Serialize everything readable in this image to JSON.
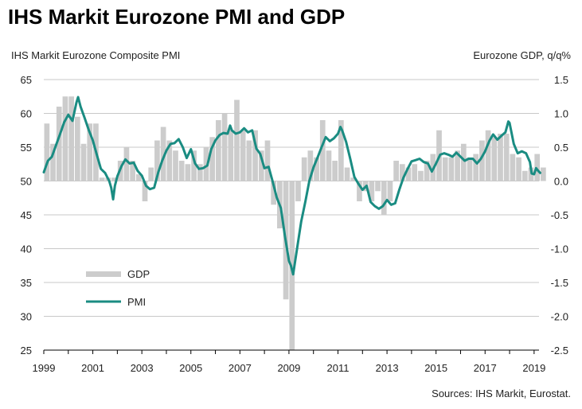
{
  "chart_data": {
    "type": "bar+line",
    "title": "IHS Markit Eurozone PMI and GDP",
    "left_axis_label": "IHS Markit Eurozone Composite PMI",
    "right_axis_label": "Eurozone GDP, q/q%",
    "source": "Sources: IHS Markit, Eurostat.",
    "left_ylim": [
      25,
      65
    ],
    "left_ticks": [
      "65",
      "60",
      "55",
      "50",
      "45",
      "40",
      "35",
      "30",
      "25"
    ],
    "right_ylim": [
      -2.5,
      1.5
    ],
    "right_ticks": [
      "1.5",
      "1.0",
      "0.5",
      "0.0",
      "-0.5",
      "-1.0",
      "-1.5",
      "-2.0",
      "-2.5"
    ],
    "xlim": [
      1999,
      2019.2
    ],
    "x_ticks": [
      "1999",
      "2001",
      "2003",
      "2005",
      "2007",
      "2009",
      "2011",
      "2013",
      "2015",
      "2017",
      "2019"
    ],
    "legend": {
      "gdp": "GDP",
      "pmi": "PMI",
      "placement": "bottom-left"
    },
    "colors": {
      "gdp": "#cccccc",
      "pmi": "#1a8c82",
      "grid": "#c8c8c8"
    },
    "series": [
      {
        "name": "GDP",
        "axis": "right",
        "kind": "bar",
        "quarters": [
          "1999Q1",
          "1999Q2",
          "1999Q3",
          "1999Q4",
          "2000Q1",
          "2000Q2",
          "2000Q3",
          "2000Q4",
          "2001Q1",
          "2001Q2",
          "2001Q3",
          "2001Q4",
          "2002Q1",
          "2002Q2",
          "2002Q3",
          "2002Q4",
          "2003Q1",
          "2003Q2",
          "2003Q3",
          "2003Q4",
          "2004Q1",
          "2004Q2",
          "2004Q3",
          "2004Q4",
          "2005Q1",
          "2005Q2",
          "2005Q3",
          "2005Q4",
          "2006Q1",
          "2006Q2",
          "2006Q3",
          "2006Q4",
          "2007Q1",
          "2007Q2",
          "2007Q3",
          "2007Q4",
          "2008Q1",
          "2008Q2",
          "2008Q3",
          "2008Q4",
          "2009Q1",
          "2009Q2",
          "2009Q3",
          "2009Q4",
          "2010Q1",
          "2010Q2",
          "2010Q3",
          "2010Q4",
          "2011Q1",
          "2011Q2",
          "2011Q3",
          "2011Q4",
          "2012Q1",
          "2012Q2",
          "2012Q3",
          "2012Q4",
          "2013Q1",
          "2013Q2",
          "2013Q3",
          "2013Q4",
          "2014Q1",
          "2014Q2",
          "2014Q3",
          "2014Q4",
          "2015Q1",
          "2015Q2",
          "2015Q3",
          "2015Q4",
          "2016Q1",
          "2016Q2",
          "2016Q3",
          "2016Q4",
          "2017Q1",
          "2017Q2",
          "2017Q3",
          "2017Q4",
          "2018Q1",
          "2018Q2",
          "2018Q3",
          "2018Q4",
          "2019Q1",
          "2019Q2"
        ],
        "values": [
          0.85,
          0.55,
          1.1,
          1.25,
          1.25,
          0.95,
          0.55,
          0.85,
          0.85,
          0.05,
          0.05,
          0.05,
          0.3,
          0.5,
          0.3,
          0.1,
          -0.3,
          0.2,
          0.6,
          0.8,
          0.6,
          0.45,
          0.3,
          0.25,
          0.45,
          0.25,
          0.5,
          0.65,
          0.9,
          1.0,
          0.75,
          1.2,
          0.75,
          0.6,
          0.75,
          0.45,
          0.6,
          -0.35,
          -0.7,
          -1.75,
          -2.5,
          -0.3,
          0.35,
          0.45,
          0.35,
          0.9,
          0.45,
          0.3,
          0.9,
          0.2,
          0.05,
          -0.3,
          -0.15,
          -0.3,
          -0.15,
          -0.5,
          -0.3,
          0.3,
          0.25,
          0.2,
          0.25,
          0.15,
          0.3,
          0.4,
          0.75,
          0.35,
          0.35,
          0.45,
          0.55,
          0.35,
          0.4,
          0.6,
          0.75,
          0.65,
          0.7,
          0.7,
          0.4,
          0.35,
          0.15,
          0.2,
          0.4,
          0.2
        ]
      },
      {
        "name": "PMI",
        "axis": "left",
        "kind": "line",
        "points": [
          [
            1999.0,
            51.3
          ],
          [
            1999.17,
            53.0
          ],
          [
            1999.33,
            53.6
          ],
          [
            1999.5,
            55.3
          ],
          [
            1999.67,
            57.0
          ],
          [
            1999.83,
            58.7
          ],
          [
            2000.0,
            59.8
          ],
          [
            2000.17,
            58.9
          ],
          [
            2000.33,
            61.6
          ],
          [
            2000.4,
            62.4
          ],
          [
            2000.5,
            61.0
          ],
          [
            2000.67,
            59.3
          ],
          [
            2000.83,
            57.6
          ],
          [
            2001.0,
            56.0
          ],
          [
            2001.17,
            53.8
          ],
          [
            2001.33,
            51.8
          ],
          [
            2001.5,
            51.2
          ],
          [
            2001.67,
            50.0
          ],
          [
            2001.75,
            49.0
          ],
          [
            2001.83,
            47.3
          ],
          [
            2001.9,
            49.3
          ],
          [
            2002.0,
            50.7
          ],
          [
            2002.17,
            52.2
          ],
          [
            2002.33,
            53.2
          ],
          [
            2002.5,
            52.6
          ],
          [
            2002.67,
            52.7
          ],
          [
            2002.83,
            51.5
          ],
          [
            2003.0,
            50.8
          ],
          [
            2003.17,
            49.3
          ],
          [
            2003.33,
            48.8
          ],
          [
            2003.5,
            49.0
          ],
          [
            2003.67,
            51.3
          ],
          [
            2003.83,
            53.0
          ],
          [
            2004.0,
            54.5
          ],
          [
            2004.17,
            55.5
          ],
          [
            2004.33,
            55.6
          ],
          [
            2004.5,
            56.2
          ],
          [
            2004.67,
            55.0
          ],
          [
            2004.83,
            53.4
          ],
          [
            2005.0,
            54.7
          ],
          [
            2005.17,
            52.6
          ],
          [
            2005.33,
            51.8
          ],
          [
            2005.5,
            51.9
          ],
          [
            2005.67,
            52.3
          ],
          [
            2005.83,
            54.7
          ],
          [
            2006.0,
            56.0
          ],
          [
            2006.17,
            56.8
          ],
          [
            2006.33,
            57.1
          ],
          [
            2006.5,
            57.0
          ],
          [
            2006.6,
            58.2
          ],
          [
            2006.67,
            57.5
          ],
          [
            2006.83,
            57.0
          ],
          [
            2007.0,
            57.2
          ],
          [
            2007.17,
            57.8
          ],
          [
            2007.33,
            57.2
          ],
          [
            2007.5,
            57.5
          ],
          [
            2007.67,
            54.8
          ],
          [
            2007.83,
            54.0
          ],
          [
            2008.0,
            51.9
          ],
          [
            2008.17,
            52.1
          ],
          [
            2008.33,
            50.0
          ],
          [
            2008.5,
            47.6
          ],
          [
            2008.67,
            46.0
          ],
          [
            2008.83,
            42.0
          ],
          [
            2009.0,
            38.2
          ],
          [
            2009.08,
            37.5
          ],
          [
            2009.17,
            36.2
          ],
          [
            2009.33,
            40.0
          ],
          [
            2009.5,
            44.0
          ],
          [
            2009.67,
            47.0
          ],
          [
            2009.83,
            50.0
          ],
          [
            2010.0,
            52.0
          ],
          [
            2010.17,
            53.5
          ],
          [
            2010.33,
            55.0
          ],
          [
            2010.5,
            56.5
          ],
          [
            2010.67,
            55.9
          ],
          [
            2010.83,
            56.3
          ],
          [
            2011.0,
            57.0
          ],
          [
            2011.1,
            58.0
          ],
          [
            2011.17,
            57.5
          ],
          [
            2011.33,
            55.8
          ],
          [
            2011.5,
            53.3
          ],
          [
            2011.67,
            50.6
          ],
          [
            2011.83,
            49.6
          ],
          [
            2012.0,
            48.7
          ],
          [
            2012.17,
            49.3
          ],
          [
            2012.33,
            46.9
          ],
          [
            2012.5,
            46.3
          ],
          [
            2012.67,
            45.9
          ],
          [
            2012.83,
            46.3
          ],
          [
            2013.0,
            47.2
          ],
          [
            2013.17,
            46.5
          ],
          [
            2013.33,
            46.7
          ],
          [
            2013.5,
            48.7
          ],
          [
            2013.67,
            50.5
          ],
          [
            2013.83,
            51.7
          ],
          [
            2014.0,
            52.9
          ],
          [
            2014.17,
            53.1
          ],
          [
            2014.33,
            53.3
          ],
          [
            2014.5,
            52.8
          ],
          [
            2014.67,
            52.6
          ],
          [
            2014.83,
            51.4
          ],
          [
            2015.0,
            52.6
          ],
          [
            2015.17,
            53.9
          ],
          [
            2015.33,
            54.1
          ],
          [
            2015.5,
            53.9
          ],
          [
            2015.67,
            53.6
          ],
          [
            2015.83,
            54.2
          ],
          [
            2016.0,
            53.6
          ],
          [
            2016.17,
            53.0
          ],
          [
            2016.33,
            53.3
          ],
          [
            2016.5,
            53.3
          ],
          [
            2016.67,
            52.6
          ],
          [
            2016.83,
            53.3
          ],
          [
            2017.0,
            54.4
          ],
          [
            2017.17,
            55.9
          ],
          [
            2017.33,
            56.9
          ],
          [
            2017.5,
            56.1
          ],
          [
            2017.67,
            56.7
          ],
          [
            2017.83,
            57.2
          ],
          [
            2017.95,
            58.8
          ],
          [
            2018.0,
            58.6
          ],
          [
            2018.17,
            55.5
          ],
          [
            2018.33,
            54.1
          ],
          [
            2018.5,
            54.4
          ],
          [
            2018.67,
            54.1
          ],
          [
            2018.83,
            52.8
          ],
          [
            2018.9,
            51.1
          ],
          [
            2019.0,
            51.0
          ],
          [
            2019.08,
            51.9
          ],
          [
            2019.17,
            51.5
          ],
          [
            2019.25,
            51.2
          ]
        ]
      }
    ]
  }
}
